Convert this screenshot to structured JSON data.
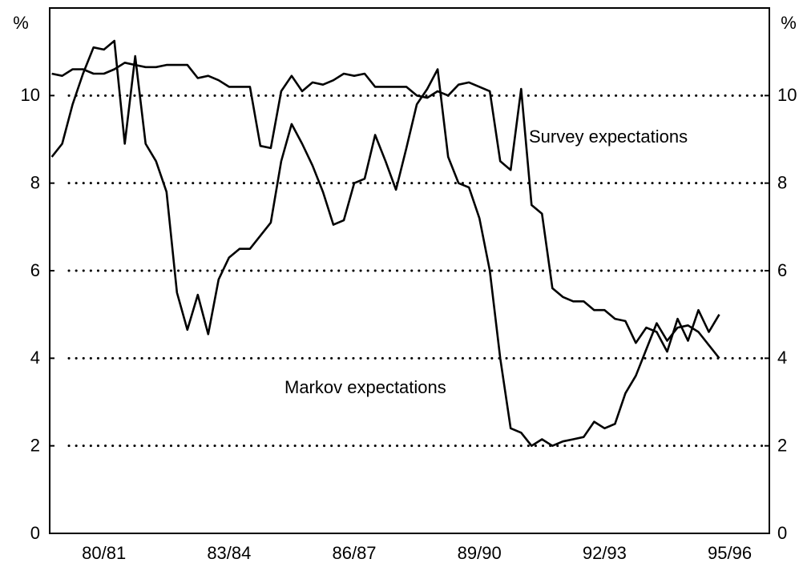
{
  "chart_data": {
    "type": "line",
    "y_unit": "%",
    "y2_unit": "%",
    "annotations": [
      "Survey expectations",
      "Markov expectations"
    ],
    "x": [
      1979.25,
      1979.5,
      1979.75,
      1980,
      1980.25,
      1980.5,
      1980.75,
      1981,
      1981.25,
      1981.5,
      1981.75,
      1982,
      1982.25,
      1982.5,
      1982.75,
      1983,
      1983.25,
      1983.5,
      1983.75,
      1984,
      1984.25,
      1984.5,
      1984.75,
      1985,
      1985.25,
      1985.5,
      1985.75,
      1986,
      1986.25,
      1986.5,
      1986.75,
      1987,
      1987.25,
      1987.5,
      1987.75,
      1988,
      1988.25,
      1988.5,
      1988.75,
      1989,
      1989.25,
      1989.5,
      1989.75,
      1990,
      1990.25,
      1990.5,
      1990.75,
      1991,
      1991.25,
      1991.5,
      1991.75,
      1992,
      1992.25,
      1992.5,
      1992.75,
      1993,
      1993.25,
      1993.5,
      1993.75,
      1994,
      1994.25,
      1994.5,
      1994.75,
      1995,
      1995.25
    ],
    "xlim": [
      1979.2,
      1996.45
    ],
    "xticks": [
      {
        "value": 1980.5,
        "label": "80/81"
      },
      {
        "value": 1983.5,
        "label": "83/84"
      },
      {
        "value": 1986.5,
        "label": "86/87"
      },
      {
        "value": 1989.5,
        "label": "89/90"
      },
      {
        "value": 1992.5,
        "label": "92/93"
      },
      {
        "value": 1995.5,
        "label": "95/96"
      }
    ],
    "ylim": [
      0,
      12
    ],
    "yticks": [
      0,
      2,
      4,
      6,
      8,
      10
    ],
    "y2lim": [
      0,
      12
    ],
    "y2ticks": [
      0,
      2,
      4,
      6,
      8,
      10
    ],
    "grid": true,
    "series": [
      {
        "name": "Survey expectations",
        "color": "#000000",
        "values": [
          10.5,
          10.45,
          10.6,
          10.6,
          10.5,
          10.5,
          10.6,
          10.75,
          10.7,
          10.65,
          10.65,
          10.7,
          10.7,
          10.7,
          10.4,
          10.45,
          10.35,
          10.2,
          10.2,
          10.2,
          8.85,
          8.8,
          10.1,
          10.45,
          10.1,
          10.3,
          10.25,
          10.35,
          10.5,
          10.45,
          10.5,
          10.2,
          10.2,
          10.2,
          10.2,
          10.0,
          9.95,
          10.1,
          10.0,
          10.25,
          10.3,
          10.2,
          10.1,
          8.5,
          8.3,
          10.15,
          7.5,
          7.3,
          5.6,
          5.4,
          5.3,
          5.3,
          5.1,
          5.1,
          4.9,
          4.85,
          4.35,
          4.7,
          4.6,
          4.15,
          4.9,
          4.4,
          5.1,
          4.6,
          5.0
        ]
      },
      {
        "name": "Markov expectations",
        "color": "#000000",
        "values": [
          8.6,
          8.9,
          9.8,
          10.5,
          11.1,
          11.05,
          11.25,
          8.9,
          10.9,
          8.9,
          8.5,
          7.8,
          5.5,
          4.65,
          5.45,
          4.55,
          5.8,
          6.3,
          6.5,
          6.5,
          6.8,
          7.1,
          8.5,
          9.35,
          8.9,
          8.4,
          7.8,
          7.05,
          7.15,
          8.0,
          8.1,
          9.1,
          8.5,
          7.85,
          8.8,
          9.8,
          10.15,
          10.6,
          8.6,
          8.0,
          7.9,
          7.2,
          6.0,
          4.0,
          2.4,
          2.3,
          2.0,
          2.15,
          2.0,
          2.1,
          2.15,
          2.2,
          2.55,
          2.4,
          2.5,
          3.2,
          3.6,
          4.2,
          4.8,
          4.4,
          4.7,
          4.75,
          4.6,
          4.3,
          4.0
        ]
      }
    ]
  }
}
